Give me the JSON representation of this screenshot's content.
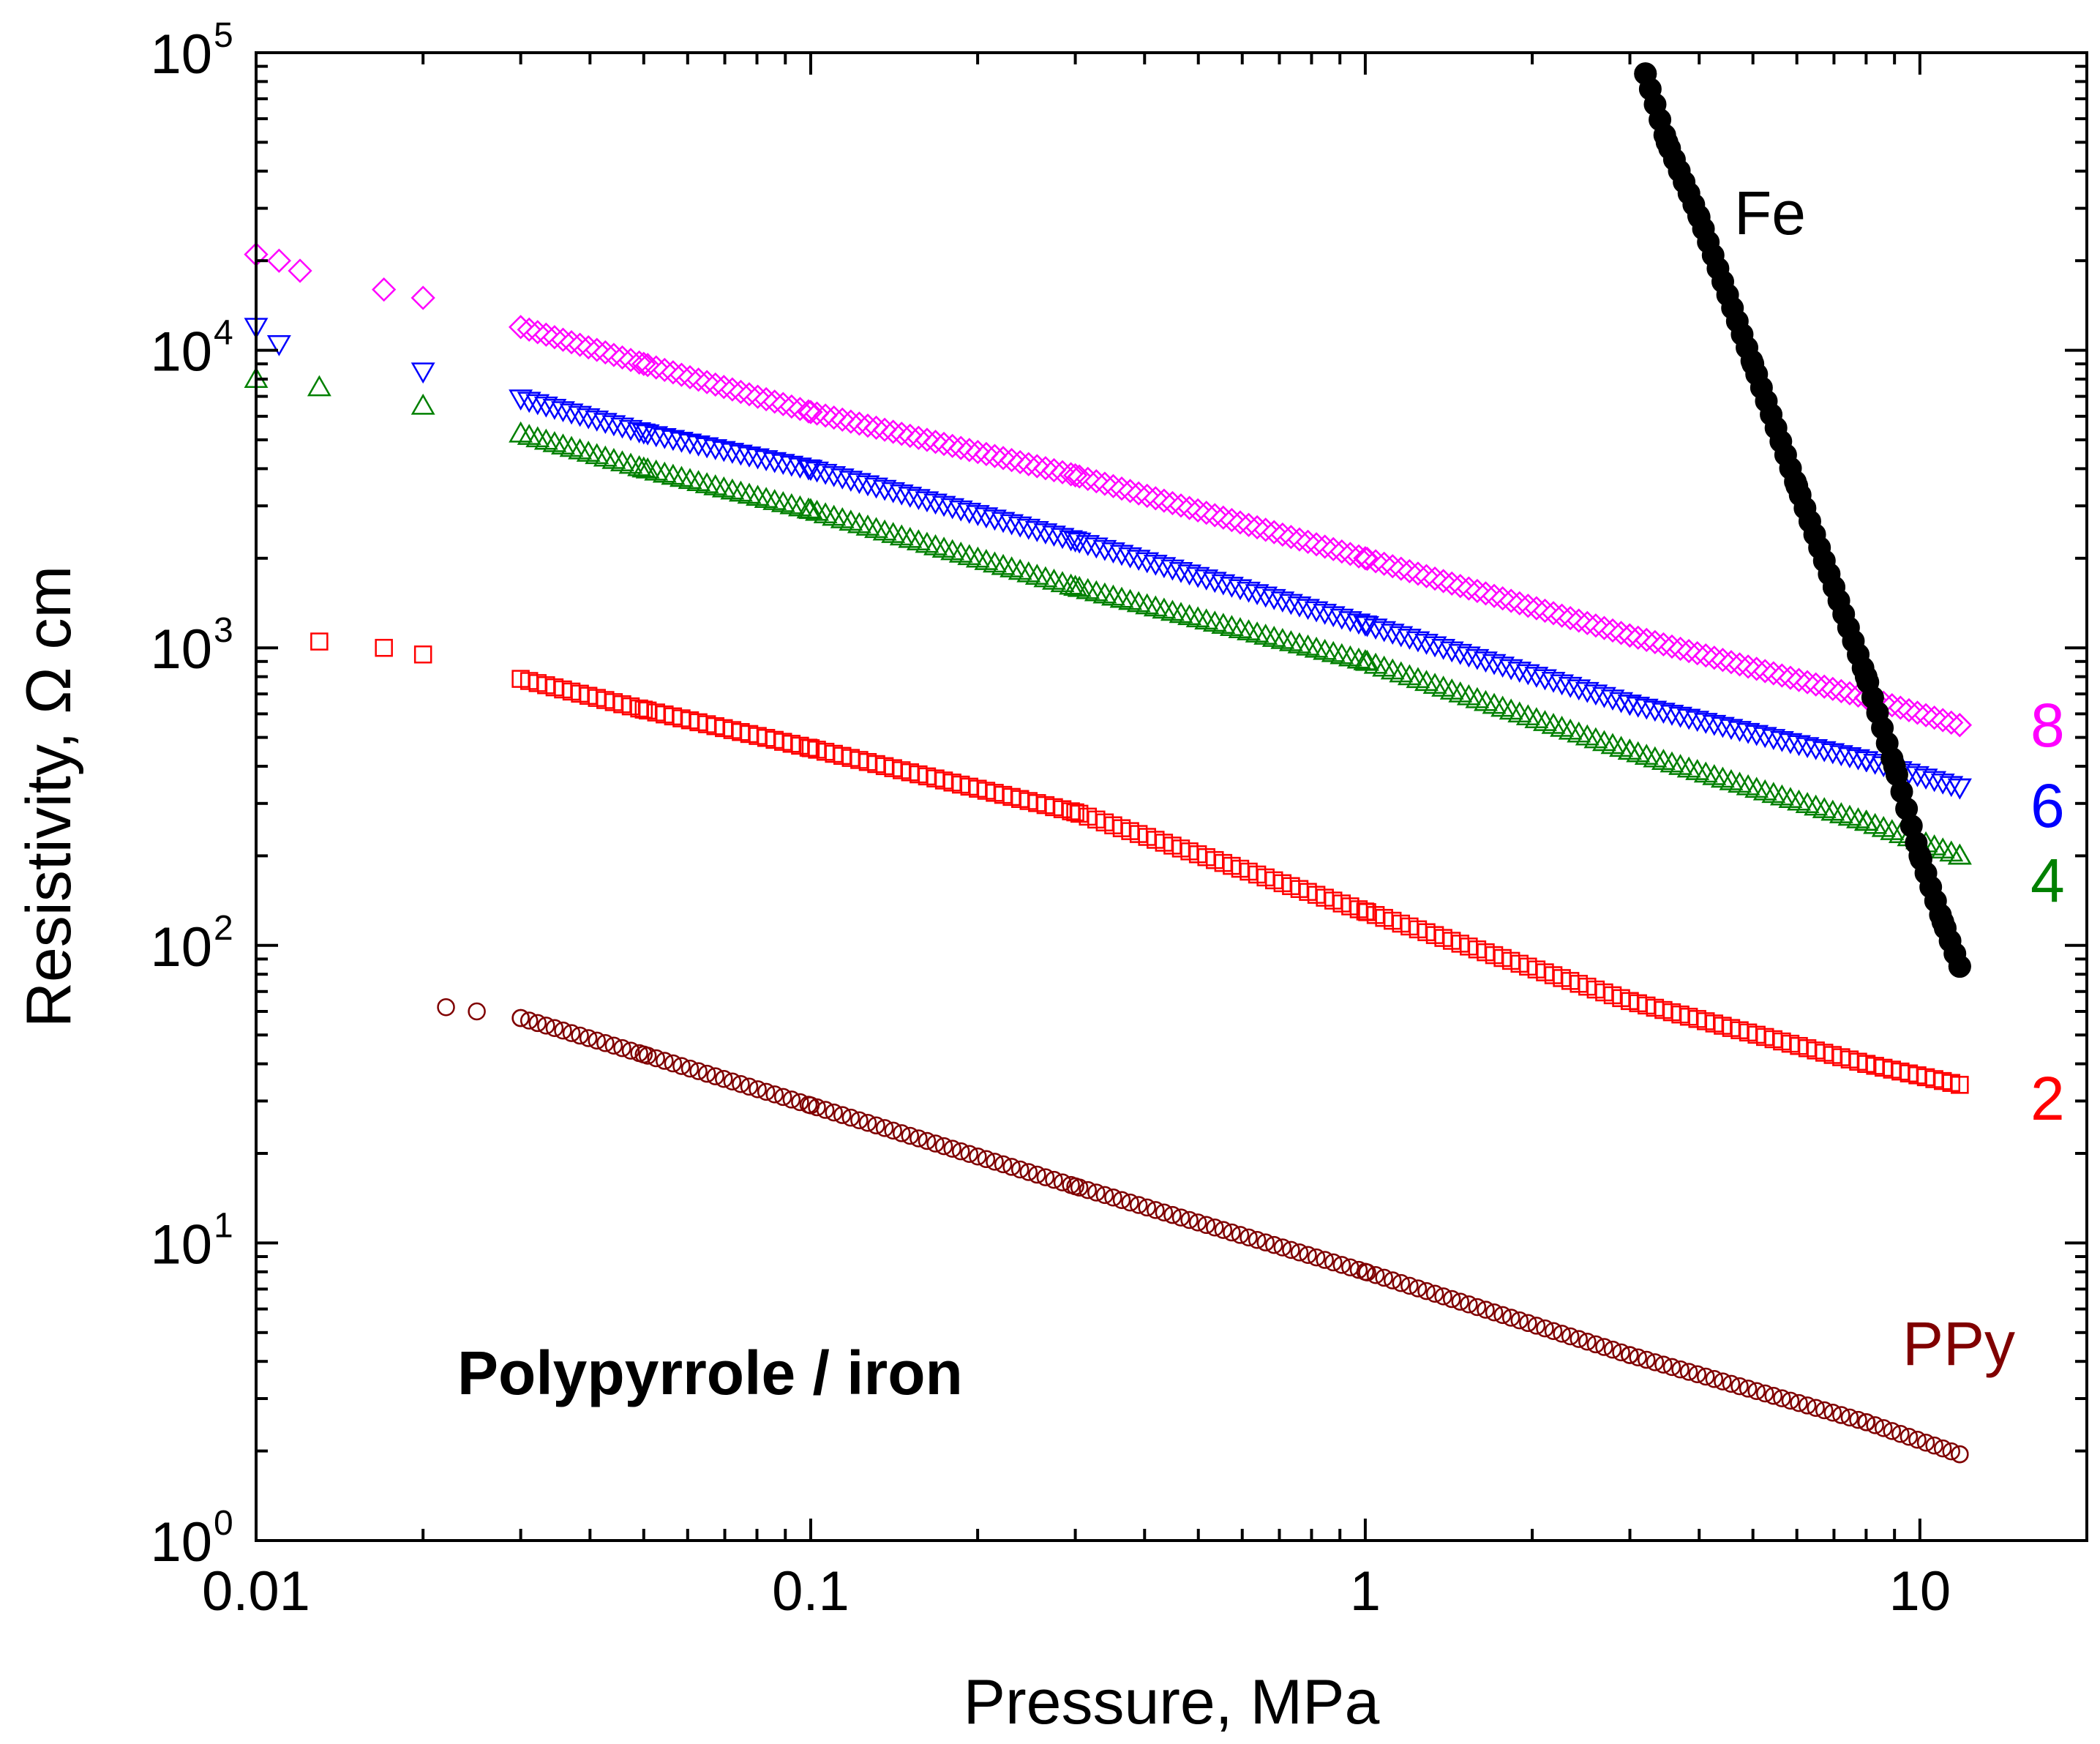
{
  "chart_data": {
    "type": "scatter",
    "title": "",
    "xlabel": "Pressure, MPa",
    "ylabel": "Resistivity, Ω cm",
    "xscale": "log",
    "yscale": "log",
    "xlim": [
      0.01,
      20
    ],
    "ylim": [
      1,
      100000
    ],
    "x_ticks": [
      {
        "value": 0.01,
        "label": "0.01"
      },
      {
        "value": 0.1,
        "label": "0.1"
      },
      {
        "value": 1,
        "label": "1"
      },
      {
        "value": 10,
        "label": "10"
      }
    ],
    "y_ticks": [
      {
        "value": 1,
        "base": "10",
        "exp": "0"
      },
      {
        "value": 10,
        "base": "10",
        "exp": "1"
      },
      {
        "value": 100,
        "base": "10",
        "exp": "2"
      },
      {
        "value": 1000,
        "base": "10",
        "exp": "3"
      },
      {
        "value": 10000,
        "base": "10",
        "exp": "4"
      },
      {
        "value": 100000,
        "base": "10",
        "exp": "5"
      }
    ],
    "grid": false,
    "annotation": "Polypyrrole / iron",
    "series": [
      {
        "name": "8",
        "color": "#ff00ff",
        "marker": "diamond",
        "x": [
          0.01,
          0.011,
          0.012,
          0.017,
          0.02,
          0.05,
          0.1,
          0.3,
          1,
          3,
          8,
          11.8
        ],
        "y": [
          21000,
          20000,
          18500,
          16000,
          15000,
          9000,
          6200,
          3800,
          2000,
          1100,
          680,
          550
        ]
      },
      {
        "name": "6",
        "color": "#0000ff",
        "marker": "triangle-down",
        "x": [
          0.01,
          0.011,
          0.02,
          0.05,
          0.1,
          0.3,
          1,
          3,
          8,
          11.8
        ],
        "y": [
          12000,
          10500,
          8500,
          5300,
          4000,
          2300,
          1200,
          650,
          420,
          340
        ]
      },
      {
        "name": "4",
        "color": "#008000",
        "marker": "triangle-up",
        "x": [
          0.01,
          0.013,
          0.02,
          0.05,
          0.1,
          0.3,
          1,
          3,
          8,
          11.8
        ],
        "y": [
          8000,
          7500,
          6500,
          4000,
          2900,
          1600,
          900,
          450,
          260,
          200
        ]
      },
      {
        "name": "2",
        "color": "#ff0000",
        "marker": "square",
        "x": [
          0.013,
          0.017,
          0.02,
          0.05,
          0.1,
          0.3,
          1,
          3,
          8,
          11.8
        ],
        "y": [
          1050,
          1000,
          950,
          620,
          460,
          280,
          130,
          65,
          40,
          34
        ]
      },
      {
        "name": "PPy",
        "color": "#800000",
        "marker": "circle",
        "x": [
          0.022,
          0.025,
          0.03,
          0.05,
          0.1,
          0.3,
          1,
          3,
          8,
          11.8
        ],
        "y": [
          62,
          60,
          57,
          43,
          29,
          15.5,
          8,
          4.2,
          2.5,
          1.95
        ]
      },
      {
        "name": "Fe",
        "color": "#000000",
        "marker": "filled-circle",
        "x": [
          3.2,
          3.5,
          4,
          5,
          6,
          7,
          8,
          9,
          10,
          11,
          11.8
        ],
        "y": [
          85000,
          50000,
          28000,
          9000,
          3500,
          1600,
          800,
          400,
          200,
          120,
          85
        ]
      }
    ]
  }
}
